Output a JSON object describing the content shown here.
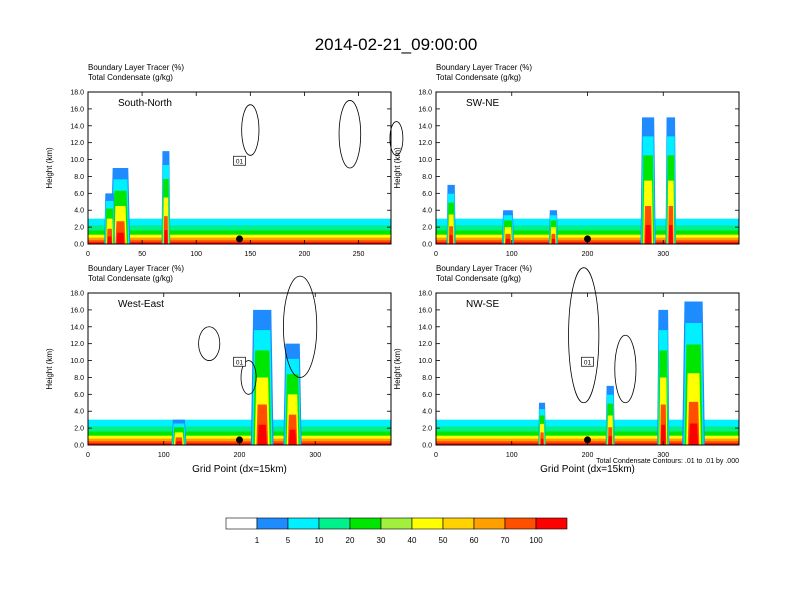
{
  "title": "2014-02-21_09:00:00",
  "colors": {
    "levels": [
      "#ffffff",
      "#1e8cff",
      "#00f0ff",
      "#00f08c",
      "#00e600",
      "#a0f03c",
      "#ffff00",
      "#ffd200",
      "#ffa000",
      "#ff5000",
      "#ff0000"
    ]
  },
  "legend": {
    "labels": [
      "1",
      "5",
      "10",
      "20",
      "30",
      "40",
      "50",
      "60",
      "70",
      "100"
    ]
  },
  "footnote": "Total Condensate Contours: .01 to .01 by .000",
  "chart_data": [
    {
      "type": "heatmap",
      "panel_label": "South-North",
      "title_line1": "Boundary Layer Tracer   (%)",
      "title_line2": "Total Condensate   (g/kg)",
      "ylabel": "Height (km)",
      "xlabel": "",
      "xlim": [
        0,
        280
      ],
      "ylim": [
        0,
        18
      ],
      "xticks": [
        "0",
        "50",
        "100",
        "150",
        "200",
        "250"
      ],
      "yticks": [
        "0.0",
        "2.0",
        "4.0",
        "6.0",
        "8.0",
        "10.0",
        "12.0",
        "14.0",
        "16.0",
        "18.0"
      ],
      "marker_x": 140,
      "contour_label": "01"
    },
    {
      "type": "heatmap",
      "panel_label": "SW-NE",
      "title_line1": "Boundary Layer Tracer   (%)",
      "title_line2": "Total Condensate   (g/kg)",
      "ylabel": "Height (km)",
      "xlabel": "",
      "xlim": [
        0,
        400
      ],
      "ylim": [
        0,
        18
      ],
      "xticks": [
        "0",
        "100",
        "200",
        "300"
      ],
      "yticks": [
        "0.0",
        "2.0",
        "4.0",
        "6.0",
        "8.0",
        "10.0",
        "12.0",
        "14.0",
        "16.0",
        "18.0"
      ],
      "marker_x": 200,
      "contour_label": ""
    },
    {
      "type": "heatmap",
      "panel_label": "West-East",
      "title_line1": "Boundary Layer Tracer   (%)",
      "title_line2": "Total Condensate   (g/kg)",
      "ylabel": "Height (km)",
      "xlabel": "Grid Point (dx=15km)",
      "xlim": [
        0,
        400
      ],
      "ylim": [
        0,
        18
      ],
      "xticks": [
        "0",
        "100",
        "200",
        "300"
      ],
      "yticks": [
        "0.0",
        "2.0",
        "4.0",
        "6.0",
        "8.0",
        "10.0",
        "12.0",
        "14.0",
        "16.0",
        "18.0"
      ],
      "marker_x": 200,
      "contour_label": "01"
    },
    {
      "type": "heatmap",
      "panel_label": "NW-SE",
      "title_line1": "Boundary Layer Tracer   (%)",
      "title_line2": "Total Condensate   (g/kg)",
      "ylabel": "Height (km)",
      "xlabel": "Grid Point (dx=15km)",
      "xlim": [
        0,
        400
      ],
      "ylim": [
        0,
        18
      ],
      "xticks": [
        "0",
        "100",
        "200",
        "300"
      ],
      "yticks": [
        "0.0",
        "2.0",
        "4.0",
        "6.0",
        "8.0",
        "10.0",
        "12.0",
        "14.0",
        "16.0",
        "18.0"
      ],
      "marker_x": 200,
      "contour_label": "01"
    }
  ]
}
